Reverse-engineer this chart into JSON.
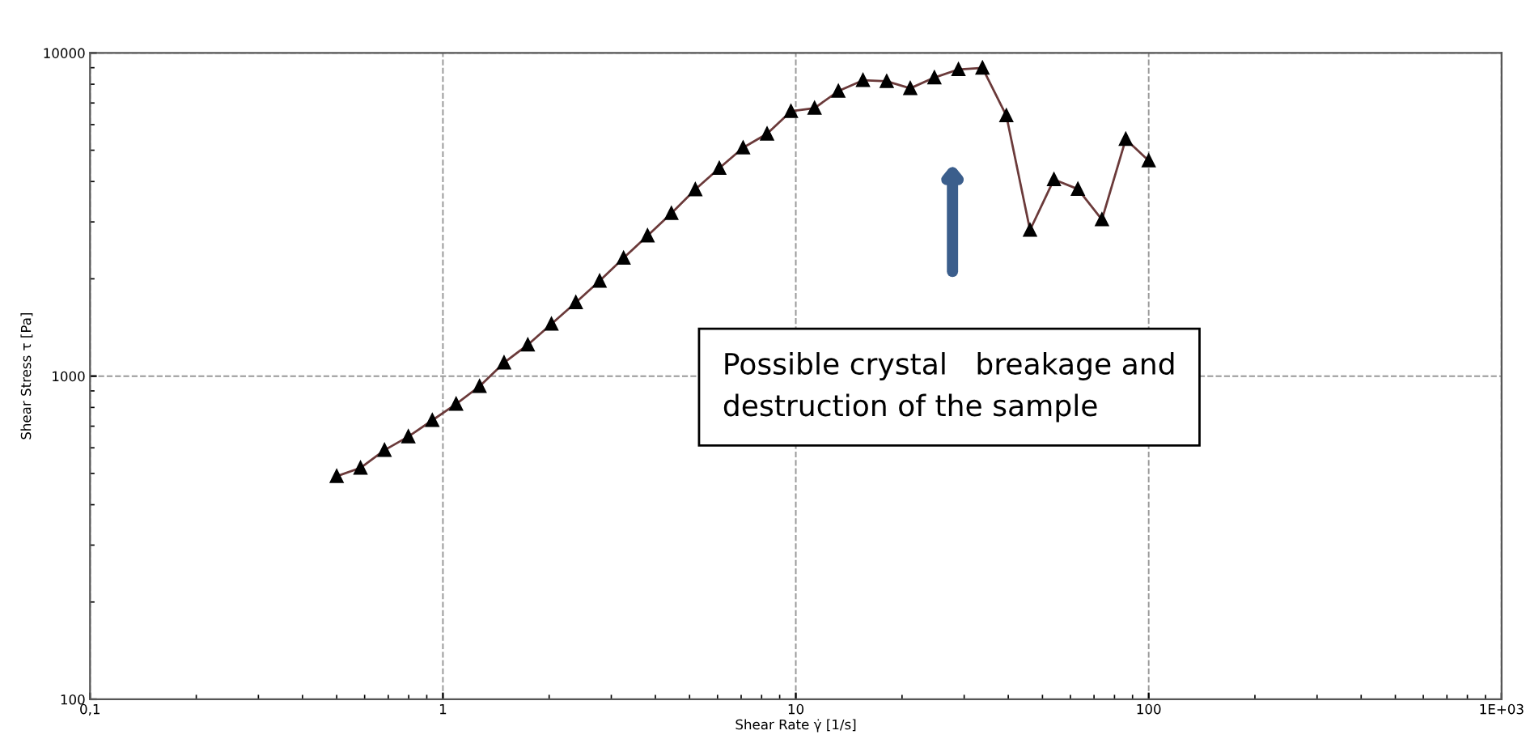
{
  "chart_data": {
    "type": "line",
    "xlabel": "Shear Rate γ̇ [1/s]",
    "ylabel": "Shear Stress τ [Pa]",
    "x": [
      0.5,
      0.584,
      0.683,
      0.798,
      0.933,
      1.09,
      1.27,
      1.49,
      1.74,
      2.03,
      2.38,
      2.78,
      3.25,
      3.8,
      4.44,
      5.19,
      6.07,
      7.09,
      8.29,
      9.69,
      11.3,
      13.2,
      15.5,
      18.1,
      21.1,
      24.7,
      28.9,
      33.8,
      39.5,
      46.1,
      53.9,
      63.0,
      73.7,
      86.1,
      100
    ],
    "series": [
      {
        "color": "#6b3a3a",
        "values": [
          490,
          520,
          590,
          650,
          730,
          820,
          930,
          1100,
          1250,
          1450,
          1690,
          1970,
          2320,
          2720,
          3190,
          3780,
          4400,
          5090,
          5620,
          6600,
          6750,
          7620,
          8230,
          8170,
          7770,
          8390,
          8890,
          8990,
          6400,
          2830,
          4060,
          3790,
          3050,
          5410,
          4640
        ]
      }
    ],
    "marker": "triangle",
    "line_style": "solid",
    "log": "xy",
    "grid": true,
    "xlim": [
      0.1,
      1000
    ],
    "ylim": [
      100,
      10000
    ],
    "xticks": [
      {
        "value": 0.1,
        "label": "0,1"
      },
      1,
      10,
      100,
      {
        "value": 1000,
        "label": "1E+03"
      }
    ],
    "yticks": [
      100,
      1000,
      10000
    ],
    "annotations": [
      "Possible crystal   breakage and\ndestruction of the sample"
    ]
  }
}
